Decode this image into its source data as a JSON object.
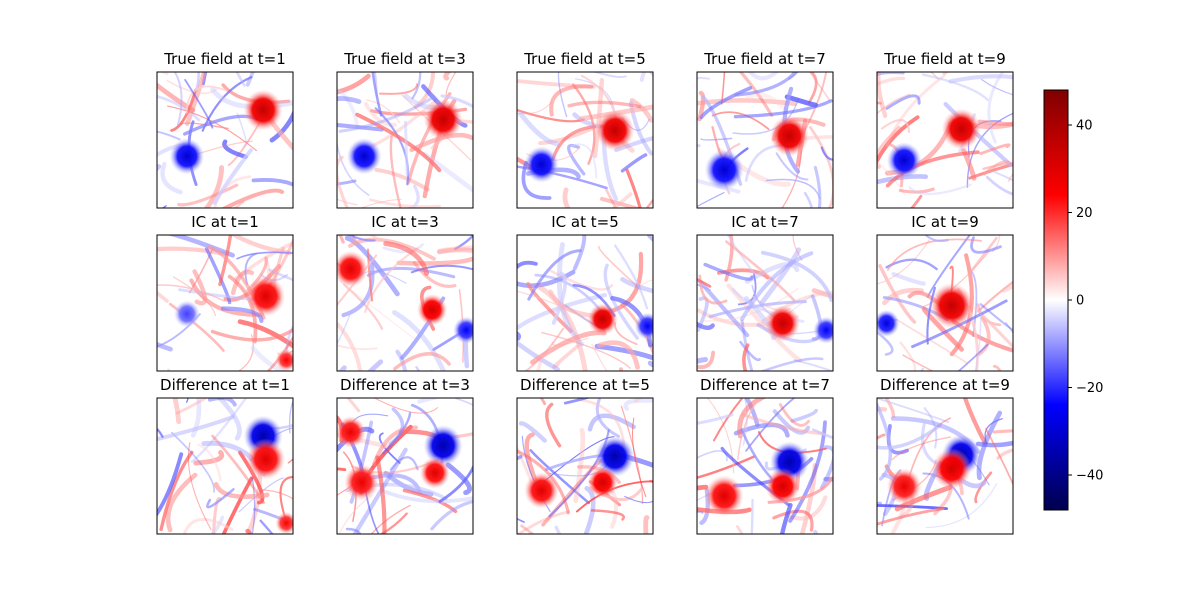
{
  "chart_data": {
    "type": "heatmap",
    "layout": {
      "rows": 3,
      "cols": 5
    },
    "row_titles": [
      "True field",
      "IC",
      "Difference"
    ],
    "times": [
      1,
      3,
      5,
      7,
      9
    ],
    "panels": [
      {
        "title": "True field at t=1",
        "features": [
          {
            "x": 0.78,
            "y": 0.72,
            "sign": 1,
            "amp": 35,
            "r": 0.09
          },
          {
            "x": 0.22,
            "y": 0.38,
            "sign": -1,
            "amp": 30,
            "r": 0.08
          }
        ]
      },
      {
        "title": "True field at t=3",
        "features": [
          {
            "x": 0.78,
            "y": 0.65,
            "sign": 1,
            "amp": 35,
            "r": 0.09
          },
          {
            "x": 0.2,
            "y": 0.38,
            "sign": -1,
            "amp": 30,
            "r": 0.08
          }
        ]
      },
      {
        "title": "True field at t=5",
        "features": [
          {
            "x": 0.72,
            "y": 0.57,
            "sign": 1,
            "amp": 35,
            "r": 0.09
          },
          {
            "x": 0.18,
            "y": 0.32,
            "sign": -1,
            "amp": 30,
            "r": 0.08
          }
        ]
      },
      {
        "title": "True field at t=7",
        "features": [
          {
            "x": 0.68,
            "y": 0.53,
            "sign": 1,
            "amp": 35,
            "r": 0.09
          },
          {
            "x": 0.2,
            "y": 0.28,
            "sign": -1,
            "amp": 30,
            "r": 0.09
          }
        ]
      },
      {
        "title": "True field at t=9",
        "features": [
          {
            "x": 0.62,
            "y": 0.58,
            "sign": 1,
            "amp": 35,
            "r": 0.09
          },
          {
            "x": 0.2,
            "y": 0.35,
            "sign": -1,
            "amp": 30,
            "r": 0.08
          }
        ]
      },
      {
        "title": "IC at t=1",
        "features": [
          {
            "x": 0.8,
            "y": 0.55,
            "sign": 1,
            "amp": 30,
            "r": 0.09
          },
          {
            "x": 0.22,
            "y": 0.42,
            "sign": -1,
            "amp": 18,
            "r": 0.06
          },
          {
            "x": 0.95,
            "y": 0.08,
            "sign": 1,
            "amp": 25,
            "r": 0.05
          }
        ]
      },
      {
        "title": "IC at t=3",
        "features": [
          {
            "x": 0.7,
            "y": 0.45,
            "sign": 1,
            "amp": 32,
            "r": 0.07
          },
          {
            "x": 0.1,
            "y": 0.75,
            "sign": 1,
            "amp": 30,
            "r": 0.08
          },
          {
            "x": 0.95,
            "y": 0.3,
            "sign": -1,
            "amp": 25,
            "r": 0.06
          }
        ]
      },
      {
        "title": "IC at t=5",
        "features": [
          {
            "x": 0.63,
            "y": 0.38,
            "sign": 1,
            "amp": 35,
            "r": 0.07
          },
          {
            "x": 0.96,
            "y": 0.33,
            "sign": -1,
            "amp": 25,
            "r": 0.06
          }
        ]
      },
      {
        "title": "IC at t=7",
        "features": [
          {
            "x": 0.63,
            "y": 0.35,
            "sign": 1,
            "amp": 35,
            "r": 0.08
          },
          {
            "x": 0.95,
            "y": 0.3,
            "sign": -1,
            "amp": 25,
            "r": 0.06
          }
        ]
      },
      {
        "title": "IC at t=9",
        "features": [
          {
            "x": 0.55,
            "y": 0.48,
            "sign": 1,
            "amp": 35,
            "r": 0.1
          },
          {
            "x": 0.07,
            "y": 0.35,
            "sign": -1,
            "amp": 28,
            "r": 0.06
          }
        ]
      },
      {
        "title": "Difference at t=1",
        "features": [
          {
            "x": 0.78,
            "y": 0.72,
            "sign": -1,
            "amp": 35,
            "r": 0.09
          },
          {
            "x": 0.8,
            "y": 0.55,
            "sign": 1,
            "amp": 30,
            "r": 0.09
          },
          {
            "x": 0.95,
            "y": 0.08,
            "sign": 1,
            "amp": 25,
            "r": 0.05
          }
        ]
      },
      {
        "title": "Difference at t=3",
        "features": [
          {
            "x": 0.78,
            "y": 0.65,
            "sign": -1,
            "amp": 35,
            "r": 0.09
          },
          {
            "x": 0.72,
            "y": 0.45,
            "sign": 1,
            "amp": 30,
            "r": 0.07
          },
          {
            "x": 0.18,
            "y": 0.38,
            "sign": 1,
            "amp": 28,
            "r": 0.08
          },
          {
            "x": 0.1,
            "y": 0.75,
            "sign": 1,
            "amp": 28,
            "r": 0.07
          }
        ]
      },
      {
        "title": "Difference at t=5",
        "features": [
          {
            "x": 0.72,
            "y": 0.57,
            "sign": -1,
            "amp": 35,
            "r": 0.09
          },
          {
            "x": 0.63,
            "y": 0.38,
            "sign": 1,
            "amp": 32,
            "r": 0.07
          },
          {
            "x": 0.18,
            "y": 0.32,
            "sign": 1,
            "amp": 30,
            "r": 0.08
          }
        ]
      },
      {
        "title": "Difference at t=7",
        "features": [
          {
            "x": 0.68,
            "y": 0.53,
            "sign": -1,
            "amp": 35,
            "r": 0.09
          },
          {
            "x": 0.63,
            "y": 0.35,
            "sign": 1,
            "amp": 32,
            "r": 0.08
          },
          {
            "x": 0.2,
            "y": 0.28,
            "sign": 1,
            "amp": 30,
            "r": 0.09
          }
        ]
      },
      {
        "title": "Difference at t=9",
        "features": [
          {
            "x": 0.62,
            "y": 0.58,
            "sign": -1,
            "amp": 35,
            "r": 0.09
          },
          {
            "x": 0.55,
            "y": 0.48,
            "sign": 1,
            "amp": 32,
            "r": 0.09
          },
          {
            "x": 0.2,
            "y": 0.35,
            "sign": 1,
            "amp": 28,
            "r": 0.08
          }
        ]
      }
    ],
    "colorbar": {
      "colormap": "seismic",
      "vmin": -48,
      "vmax": 48,
      "ticks": [
        40,
        20,
        0,
        -20,
        -40
      ],
      "tick_labels": [
        "40",
        "20",
        "0",
        "−20",
        "−40"
      ]
    }
  }
}
